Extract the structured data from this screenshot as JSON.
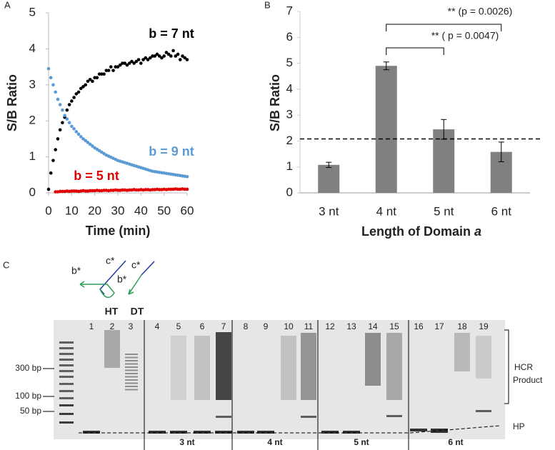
{
  "panel_labels": [
    "A",
    "B",
    "C"
  ],
  "chart_data": [
    {
      "type": "scatter",
      "ylabel": "S/B Ratio",
      "xlabel": "Time (min)",
      "xlim": [
        0,
        60
      ],
      "xticks": [
        0,
        10,
        20,
        30,
        40,
        50,
        60
      ],
      "ylim": [
        0,
        5
      ],
      "yticks": [
        0,
        1,
        2,
        3,
        4,
        5
      ],
      "x": [
        0,
        1,
        2,
        3,
        4,
        5,
        6,
        7,
        8,
        9,
        10,
        11,
        12,
        13,
        14,
        15,
        16,
        17,
        18,
        19,
        20,
        21,
        22,
        23,
        24,
        25,
        26,
        27,
        28,
        29,
        30,
        31,
        32,
        33,
        34,
        35,
        36,
        37,
        38,
        39,
        40,
        41,
        42,
        43,
        44,
        45,
        46,
        47,
        48,
        49,
        50,
        51,
        52,
        53,
        54,
        55,
        56,
        57,
        58,
        59,
        60
      ],
      "series": [
        {
          "name": "b = 7 nt",
          "color": "#000000",
          "values": [
            0.1,
            0.55,
            0.9,
            1.2,
            1.5,
            1.75,
            1.95,
            2.1,
            2.3,
            2.45,
            2.55,
            2.65,
            2.75,
            2.8,
            2.9,
            2.95,
            3.0,
            3.1,
            3.15,
            3.1,
            3.2,
            3.2,
            3.3,
            3.3,
            3.3,
            3.4,
            3.4,
            3.5,
            3.4,
            3.5,
            3.5,
            3.55,
            3.6,
            3.6,
            3.55,
            3.6,
            3.65,
            3.6,
            3.65,
            3.7,
            3.6,
            3.7,
            3.75,
            3.7,
            3.75,
            3.8,
            3.8,
            3.85,
            3.8,
            3.75,
            3.8,
            3.9,
            3.85,
            3.8,
            3.95,
            3.8,
            3.85,
            3.7,
            3.8,
            3.75,
            3.7
          ]
        },
        {
          "name": "b = 9 nt",
          "color": "#5b9bd5",
          "values": [
            3.45,
            3.2,
            3.0,
            2.8,
            2.6,
            2.45,
            2.3,
            2.15,
            2.05,
            1.95,
            1.85,
            1.78,
            1.7,
            1.63,
            1.56,
            1.5,
            1.45,
            1.4,
            1.35,
            1.3,
            1.25,
            1.21,
            1.17,
            1.13,
            1.09,
            1.05,
            1.02,
            0.99,
            0.96,
            0.93,
            0.9,
            0.88,
            0.86,
            0.84,
            0.82,
            0.8,
            0.78,
            0.76,
            0.74,
            0.72,
            0.7,
            0.68,
            0.66,
            0.64,
            0.62,
            0.6,
            0.59,
            0.58,
            0.57,
            0.56,
            0.55,
            0.54,
            0.53,
            0.52,
            0.51,
            0.5,
            0.49,
            0.48,
            0.47,
            0.46,
            0.45
          ]
        },
        {
          "name": "b = 5 nt",
          "color": "#e00000",
          "values": [
            null,
            null,
            null,
            0.03,
            0.03,
            0.04,
            0.04,
            0.04,
            0.05,
            0.04,
            0.05,
            0.05,
            0.05,
            0.04,
            0.05,
            0.06,
            0.05,
            0.05,
            0.06,
            0.06,
            0.06,
            0.07,
            0.06,
            0.06,
            0.07,
            0.07,
            0.06,
            0.07,
            0.07,
            0.08,
            0.07,
            0.07,
            0.08,
            0.08,
            0.07,
            0.08,
            0.08,
            0.09,
            0.08,
            0.08,
            0.09,
            0.08,
            0.09,
            0.09,
            0.08,
            0.09,
            0.09,
            0.1,
            0.09,
            0.09,
            0.1,
            0.09,
            0.1,
            0.1,
            0.1,
            0.11,
            0.1,
            0.1,
            0.11,
            0.1,
            0.1
          ]
        }
      ]
    },
    {
      "type": "bar",
      "ylabel": "S/B Ratio",
      "xlabel": "Length of Domain",
      "xlabel_italic": "a",
      "categories": [
        "3 nt",
        "4 nt",
        "5 nt",
        "6 nt"
      ],
      "values": [
        1.08,
        4.9,
        2.45,
        1.58
      ],
      "errors": [
        0.1,
        0.15,
        0.38,
        0.38
      ],
      "color": "#808080",
      "ylim": [
        0,
        7
      ],
      "yticks": [
        0,
        1,
        2,
        3,
        4,
        5,
        6,
        7
      ],
      "reference_line": 2.08,
      "annotations": [
        "** (p = 0.0026)",
        "** ( p = 0.0047)"
      ]
    }
  ],
  "gel": {
    "diagram_labels": [
      "b*",
      "c*",
      "b*",
      "c*"
    ],
    "lane_groups_top": [
      "HT",
      "DT"
    ],
    "lanes": [
      "1",
      "2",
      "3",
      "4",
      "5",
      "6",
      "7",
      "8",
      "9",
      "10",
      "11",
      "12",
      "13",
      "14",
      "15",
      "16",
      "17",
      "18",
      "19"
    ],
    "markers": [
      "300 bp",
      "100 bp",
      "50 bp"
    ],
    "groups": [
      "3 nt",
      "4 nt",
      "5 nt",
      "6 nt"
    ],
    "right_labels": [
      "HCR",
      "Product",
      "HP"
    ]
  }
}
